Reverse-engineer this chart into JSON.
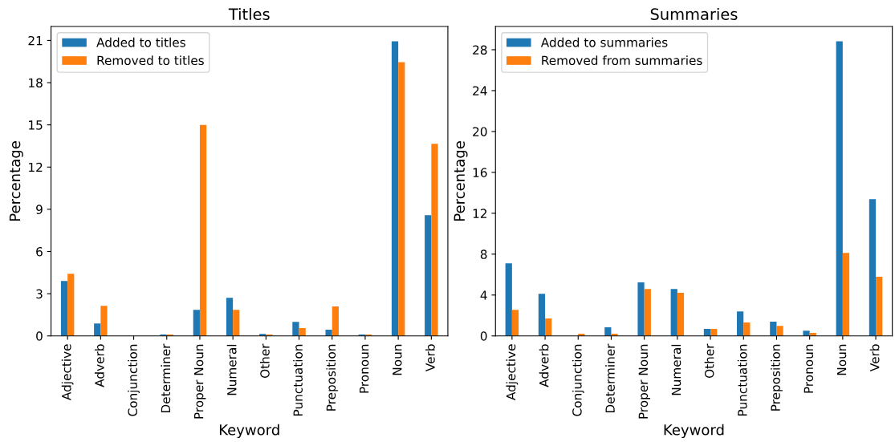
{
  "chart_data": [
    {
      "type": "bar",
      "title": "Titles",
      "xlabel": "Keyword",
      "ylabel": "Percentage",
      "categories": [
        "Adjective",
        "Adverb",
        "Conjunction",
        "Determiner",
        "Proper Noun",
        "Numeral",
        "Other",
        "Punctuation",
        "Preposition",
        "Pronoun",
        "Noun",
        "Verb"
      ],
      "series": [
        {
          "name": "Added to titles",
          "color": "#1f77b4",
          "values": [
            3.91,
            0.89,
            null,
            0.1,
            1.86,
            2.71,
            0.15,
            1.0,
            0.44,
            0.1,
            20.94,
            8.58
          ]
        },
        {
          "name": "Removed to titles",
          "color": "#ff7f0e",
          "values": [
            4.42,
            2.14,
            null,
            0.1,
            15.0,
            1.86,
            0.1,
            0.55,
            2.09,
            0.1,
            19.46,
            13.65
          ]
        }
      ],
      "ylim": [
        0,
        21.99
      ],
      "yticks": [
        0,
        3,
        6,
        9,
        12,
        15,
        18,
        21
      ],
      "legend": "top left",
      "grid": false
    },
    {
      "type": "bar",
      "title": "Summaries",
      "xlabel": "Keyword",
      "ylabel": "Percentage",
      "categories": [
        "Adjective",
        "Adverb",
        "Conjunction",
        "Determiner",
        "Proper Noun",
        "Numeral",
        "Other",
        "Punctuation",
        "Preposition",
        "Pronoun",
        "Noun",
        "Verb"
      ],
      "series": [
        {
          "name": "Added to summaries",
          "color": "#1f77b4",
          "values": [
            7.11,
            4.13,
            null,
            0.84,
            5.23,
            4.6,
            0.68,
            2.4,
            1.39,
            0.52,
            28.83,
            13.38
          ]
        },
        {
          "name": "Removed from summaries",
          "color": "#ff7f0e",
          "values": [
            2.56,
            1.7,
            0.21,
            0.21,
            4.6,
            4.21,
            0.68,
            1.31,
            0.99,
            0.29,
            8.13,
            5.78
          ]
        }
      ],
      "ylim": [
        0,
        30.27
      ],
      "yticks": [
        0,
        4,
        8,
        12,
        16,
        20,
        24,
        28
      ],
      "legend": "top left",
      "grid": false
    }
  ]
}
